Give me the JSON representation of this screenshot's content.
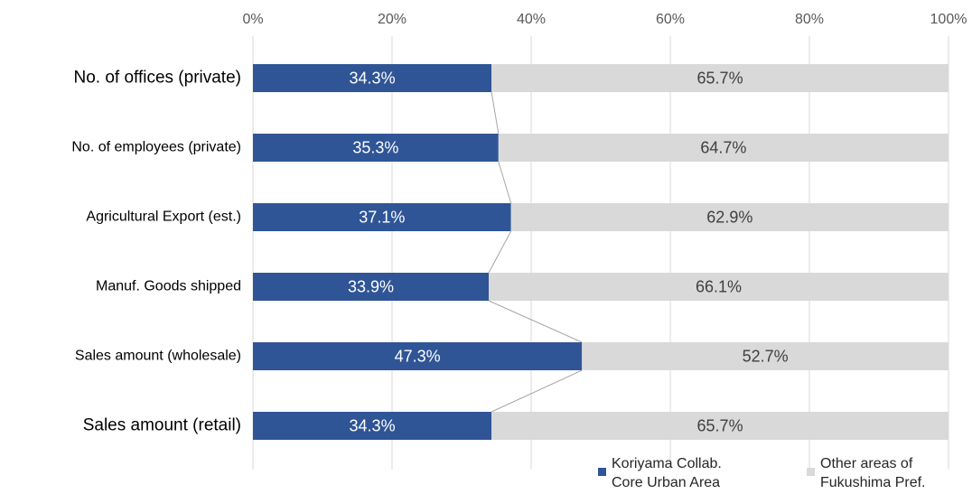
{
  "chart_data": {
    "type": "stacked-barh",
    "categories": [
      "No. of offices (private)",
      "No. of employees (private)",
      "Agricultural Export (est.)",
      "Manuf. Goods shipped",
      "Sales amount (wholesale)",
      "Sales amount (retail)"
    ],
    "series": [
      {
        "name": "Koriyama Collab. Core Urban Area",
        "color": "#2f5597",
        "values": [
          34.3,
          35.3,
          37.1,
          33.9,
          47.3,
          34.3
        ],
        "value_labels": [
          "34.3%",
          "35.3%",
          "37.1%",
          "33.9%",
          "47.3%",
          "34.3%"
        ]
      },
      {
        "name": "Other areas of Fukushima Pref.",
        "color": "#d9d9d9",
        "values": [
          65.7,
          64.7,
          62.9,
          66.1,
          52.7,
          65.7
        ],
        "value_labels": [
          "65.7%",
          "64.7%",
          "62.9%",
          "66.1%",
          "52.7%",
          "65.7%"
        ]
      }
    ],
    "xlim": [
      0,
      100
    ],
    "xticks": [
      {
        "value": 0,
        "label": "0%"
      },
      {
        "value": 20,
        "label": "20%"
      },
      {
        "value": 40,
        "label": "40%"
      },
      {
        "value": 60,
        "label": "60%"
      },
      {
        "value": 80,
        "label": "80%"
      },
      {
        "value": 100,
        "label": "100%"
      }
    ],
    "grid": true,
    "legend": "bottom-right"
  }
}
